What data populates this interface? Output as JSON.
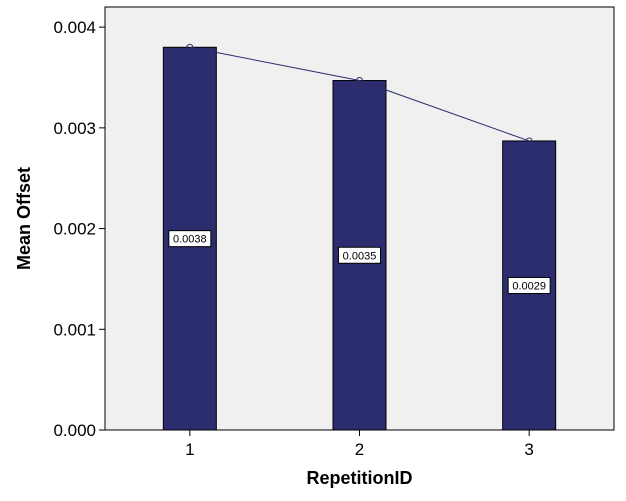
{
  "chart_data": {
    "type": "bar",
    "categories": [
      "1",
      "2",
      "3"
    ],
    "values": [
      0.0038,
      0.00347,
      0.00287
    ],
    "data_labels": [
      "0.0038",
      "0.0035",
      "0.0029"
    ],
    "xlabel": "RepetitionID",
    "ylabel": "Mean Offset",
    "ylim": [
      0,
      0.0042
    ],
    "yticks": [
      "0.000",
      "0.001",
      "0.002",
      "0.003",
      "0.004"
    ],
    "ytick_values": [
      0,
      0.001,
      0.002,
      0.003,
      0.004
    ],
    "overlay": "line",
    "grid": false,
    "legend": "none",
    "colors": {
      "bar": "#2b2d6e",
      "line": "#2b2d6e",
      "plot_background": "#f0f0f0"
    }
  }
}
